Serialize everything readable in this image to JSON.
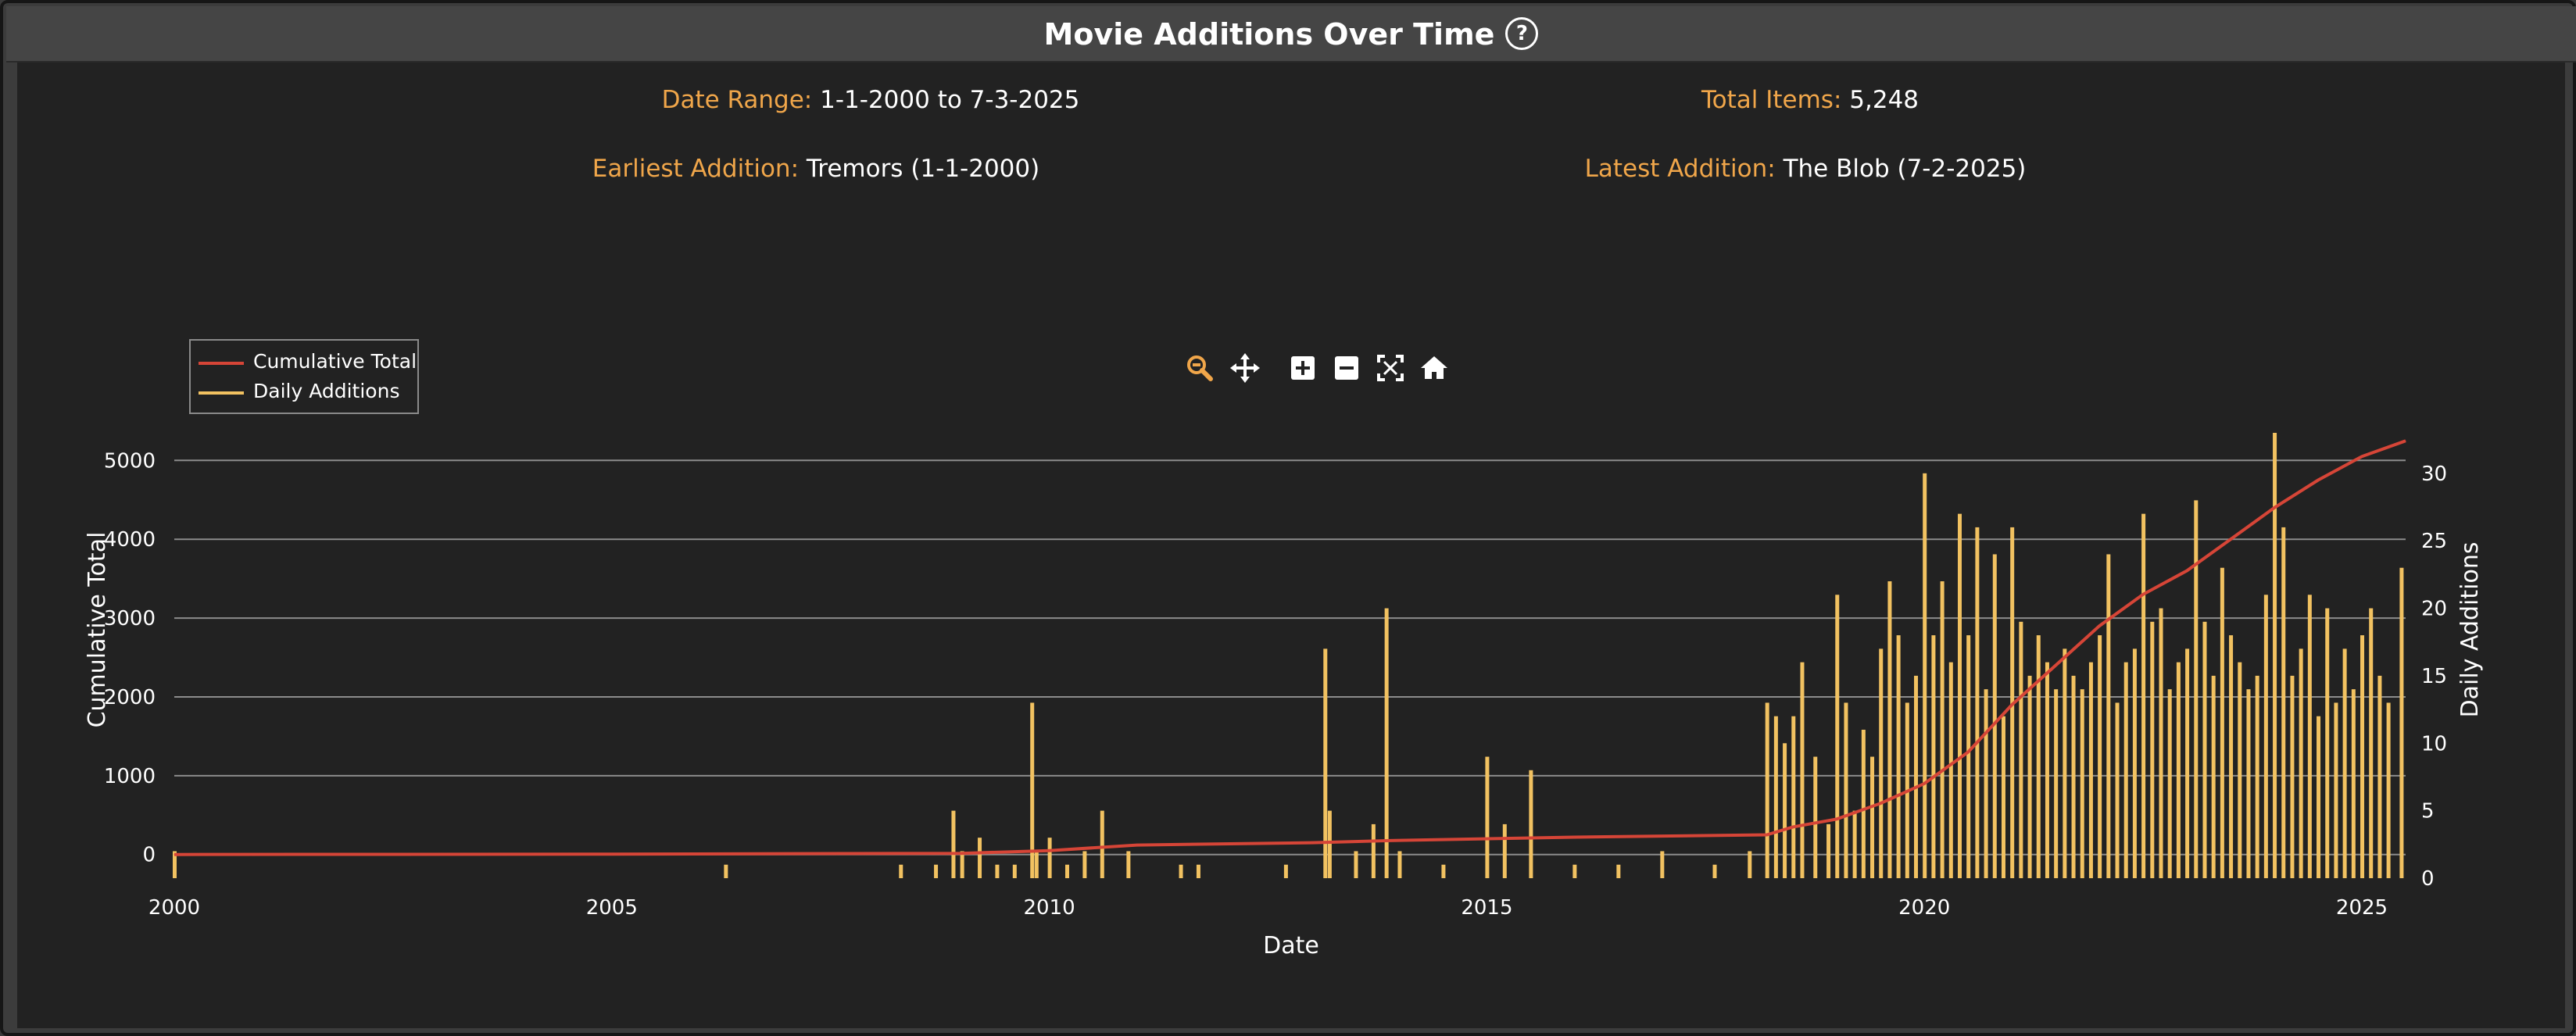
{
  "header": {
    "title": "Movie Additions Over Time",
    "help_icon": "question-circle-icon"
  },
  "stats": {
    "date_range": {
      "label": "Date Range:",
      "value": "1-1-2000 to 7-3-2025"
    },
    "total_items": {
      "label": "Total Items:",
      "value": "5,248"
    },
    "earliest": {
      "label": "Earliest Addition:",
      "value": "Tremors (1-1-2000)"
    },
    "latest": {
      "label": "Latest Addition:",
      "value": "The Blob (7-2-2025)"
    }
  },
  "toolbar": {
    "icons": [
      "zoom-icon",
      "pan-icon",
      "zoom-in-icon",
      "zoom-out-icon",
      "autoscale-icon",
      "reset-home-icon"
    ]
  },
  "colors": {
    "accent": "#f0a64a",
    "cumulative": "#d64537",
    "daily": "#f2c261",
    "panel": "#222222"
  },
  "chart_data": {
    "type": "line",
    "title": "",
    "xlabel": "Date",
    "ylabel": "Cumulative Total",
    "y2label": "Daily Additions",
    "xlim": [
      2000.0,
      2025.5
    ],
    "ylim": [
      -300,
      5350
    ],
    "y2lim": [
      0,
      33
    ],
    "x_ticks": [
      "2000",
      "2005",
      "2010",
      "2015",
      "2020",
      "2025"
    ],
    "y_ticks": [
      "0",
      "1000",
      "2000",
      "3000",
      "4000",
      "5000"
    ],
    "y2_ticks": [
      "0",
      "5",
      "10",
      "15",
      "20",
      "25",
      "30"
    ],
    "grid": true,
    "legend_position": "top-left",
    "series": [
      {
        "name": "Cumulative Total",
        "axis": "left",
        "x": [
          2000.0,
          2005.0,
          2009.0,
          2010.0,
          2011.0,
          2013.0,
          2014.0,
          2016.0,
          2018.2,
          2018.5,
          2019.0,
          2019.5,
          2020.0,
          2020.5,
          2021.0,
          2021.5,
          2022.0,
          2022.5,
          2023.0,
          2023.5,
          2024.0,
          2024.5,
          2025.0,
          2025.5
        ],
        "y": [
          0,
          5,
          15,
          50,
          120,
          150,
          180,
          220,
          250,
          350,
          450,
          650,
          900,
          1300,
          1900,
          2400,
          2900,
          3300,
          3600,
          4000,
          4400,
          4750,
          5050,
          5248
        ]
      },
      {
        "name": "Daily Additions",
        "axis": "right",
        "type": "bar",
        "x": [
          2000.0,
          2006.3,
          2008.3,
          2008.7,
          2008.9,
          2009.0,
          2009.2,
          2009.4,
          2009.6,
          2009.8,
          2009.85,
          2010.0,
          2010.2,
          2010.4,
          2010.6,
          2010.9,
          2011.5,
          2011.7,
          2012.7,
          2013.15,
          2013.2,
          2013.5,
          2013.7,
          2013.85,
          2014.0,
          2014.5,
          2015.0,
          2015.2,
          2015.5,
          2016.0,
          2016.5,
          2017.0,
          2017.6,
          2018.0,
          2018.2,
          2018.3,
          2018.4,
          2018.5,
          2018.6,
          2018.75,
          2018.9,
          2019.0,
          2019.1,
          2019.2,
          2019.3,
          2019.4,
          2019.5,
          2019.6,
          2019.7,
          2019.8,
          2019.9,
          2020.0,
          2020.1,
          2020.2,
          2020.3,
          2020.4,
          2020.5,
          2020.6,
          2020.7,
          2020.8,
          2020.9,
          2021.0,
          2021.1,
          2021.2,
          2021.3,
          2021.4,
          2021.5,
          2021.6,
          2021.7,
          2021.8,
          2021.9,
          2022.0,
          2022.1,
          2022.2,
          2022.3,
          2022.4,
          2022.5,
          2022.6,
          2022.7,
          2022.8,
          2022.9,
          2023.0,
          2023.1,
          2023.2,
          2023.3,
          2023.4,
          2023.5,
          2023.6,
          2023.7,
          2023.8,
          2023.9,
          2024.0,
          2024.1,
          2024.2,
          2024.3,
          2024.4,
          2024.5,
          2024.6,
          2024.7,
          2024.8,
          2024.9,
          2025.0,
          2025.1,
          2025.2,
          2025.3,
          2025.45
        ],
        "y": [
          2,
          1,
          1,
          1,
          5,
          2,
          3,
          1,
          1,
          13,
          2,
          3,
          1,
          2,
          5,
          2,
          1,
          1,
          1,
          17,
          5,
          2,
          4,
          20,
          2,
          1,
          9,
          4,
          8,
          1,
          1,
          2,
          1,
          2,
          13,
          12,
          10,
          12,
          16,
          9,
          4,
          21,
          13,
          5,
          11,
          9,
          17,
          22,
          18,
          13,
          15,
          30,
          18,
          22,
          16,
          27,
          18,
          26,
          14,
          24,
          12,
          26,
          19,
          15,
          18,
          16,
          14,
          17,
          15,
          14,
          16,
          18,
          24,
          13,
          16,
          17,
          27,
          19,
          20,
          14,
          16,
          17,
          28,
          19,
          15,
          23,
          18,
          16,
          14,
          15,
          21,
          33,
          26,
          15,
          17,
          21,
          12,
          20,
          13,
          17,
          14,
          18,
          20,
          15,
          13,
          23
        ]
      }
    ]
  }
}
